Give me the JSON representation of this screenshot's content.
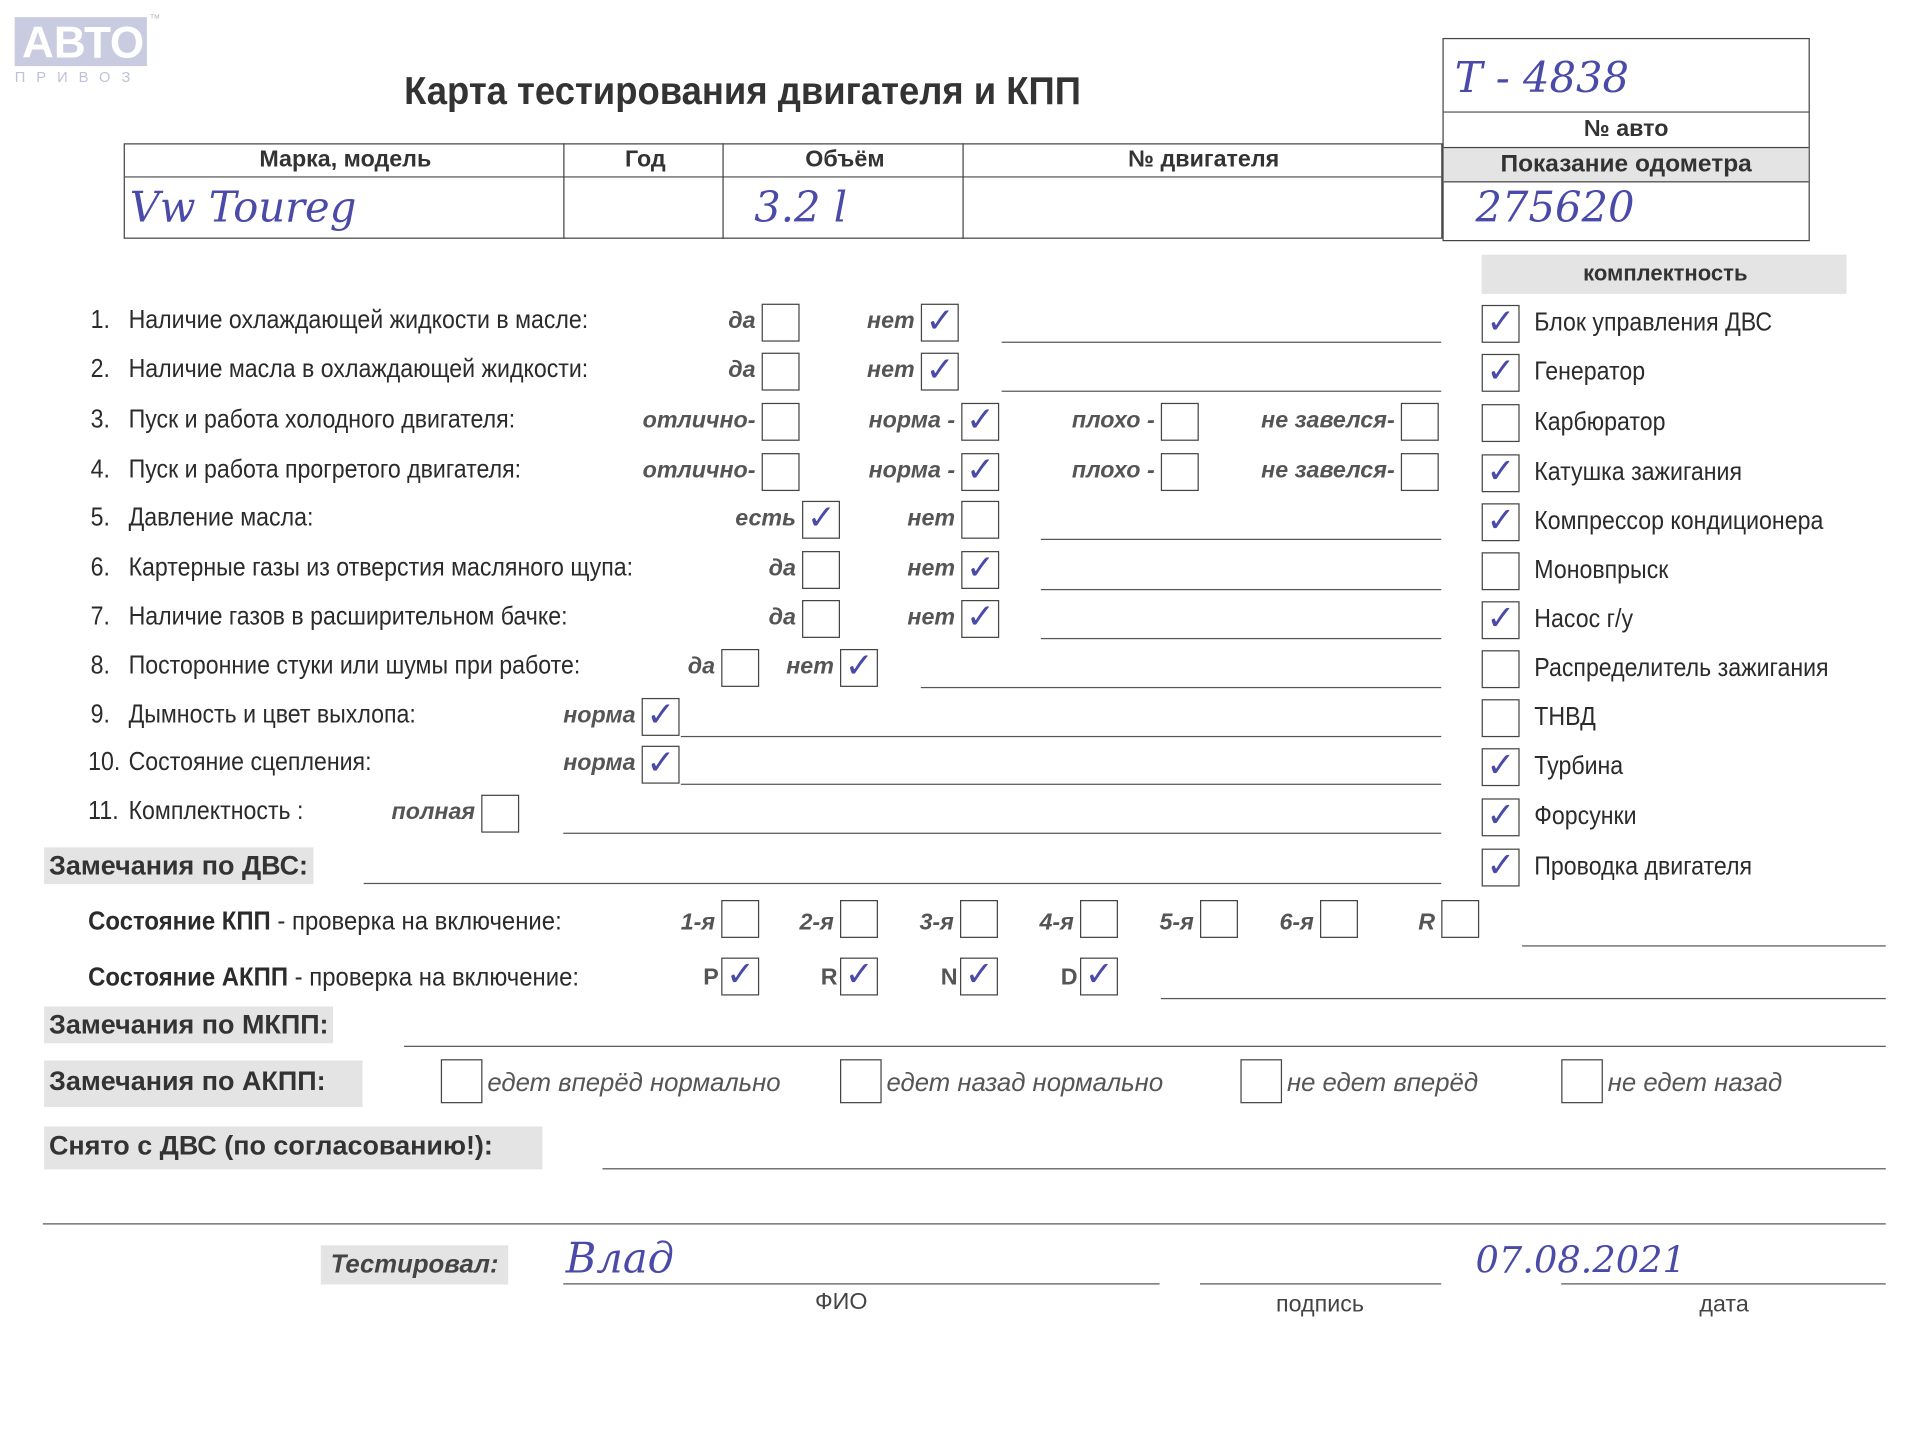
{
  "logo": {
    "text": "АВТО",
    "sub": "ПРИВОЗ",
    "tm": "™"
  },
  "title": "Карта тестирования двигателя  и КПП",
  "header": {
    "columns": [
      "Марка, модель",
      "Год",
      "Объём",
      "№ двигателя"
    ],
    "values": [
      "Vw Toureg",
      "",
      "3.2 l",
      ""
    ],
    "car_number_value": "T - 4838",
    "car_number_label": "№ авто",
    "odometer_label": "Показание одометра",
    "odometer_value": "275620"
  },
  "completeness": {
    "title": "комплектность",
    "items": [
      {
        "label": "Блок управления ДВС",
        "checked": true
      },
      {
        "label": "Генератор",
        "checked": true
      },
      {
        "label": "Карбюратор",
        "checked": false
      },
      {
        "label": "Катушка зажигания",
        "checked": true
      },
      {
        "label": "Компрессор кондиционера",
        "checked": true
      },
      {
        "label": "Моновпрыск",
        "checked": false
      },
      {
        "label": "Насос г/у",
        "checked": true
      },
      {
        "label": "Распределитель зажигания",
        "checked": false
      },
      {
        "label": "ТНВД",
        "checked": false
      },
      {
        "label": "Турбина",
        "checked": true
      },
      {
        "label": "Форсунки",
        "checked": true
      },
      {
        "label": "Проводка двигателя",
        "checked": true
      }
    ]
  },
  "checks": [
    {
      "num": "1.",
      "label": "Наличие охлаждающей жидкости в масле:",
      "options": [
        {
          "label": "да",
          "checked": false
        },
        {
          "label": "нет",
          "checked": true
        }
      ]
    },
    {
      "num": "2.",
      "label": "Наличие масла в охлаждающей жидкости:",
      "options": [
        {
          "label": "да",
          "checked": false
        },
        {
          "label": "нет",
          "checked": true
        }
      ]
    },
    {
      "num": "3.",
      "label": "Пуск и работа холодного двигателя:",
      "options": [
        {
          "label": "отлично-",
          "checked": false
        },
        {
          "label": "норма -",
          "checked": true
        },
        {
          "label": "плохо -",
          "checked": false
        },
        {
          "label": "не завелся-",
          "checked": false
        }
      ]
    },
    {
      "num": "4.",
      "label": "Пуск и работа прогретого двигателя:",
      "options": [
        {
          "label": "отлично-",
          "checked": false
        },
        {
          "label": "норма -",
          "checked": true
        },
        {
          "label": "плохо -",
          "checked": false
        },
        {
          "label": "не завелся-",
          "checked": false
        }
      ]
    },
    {
      "num": "5.",
      "label": "Давление масла:",
      "options": [
        {
          "label": "есть",
          "checked": true
        },
        {
          "label": "нет",
          "checked": false
        }
      ]
    },
    {
      "num": "6.",
      "label": "Картерные газы из отверстия масляного щупа:",
      "options": [
        {
          "label": "да",
          "checked": false
        },
        {
          "label": "нет",
          "checked": true
        }
      ]
    },
    {
      "num": "7.",
      "label": "Наличие газов в расширительном бачке:",
      "options": [
        {
          "label": "да",
          "checked": false
        },
        {
          "label": "нет",
          "checked": true
        }
      ]
    },
    {
      "num": "8.",
      "label": "Посторонние стуки или шумы при работе:",
      "options": [
        {
          "label": "да",
          "checked": false
        },
        {
          "label": "нет",
          "checked": true
        }
      ]
    },
    {
      "num": "9.",
      "label": "Дымность и цвет выхлопа:",
      "options": [
        {
          "label": "норма",
          "checked": true
        }
      ]
    },
    {
      "num": "10.",
      "label": "Состояние сцепления:",
      "options": [
        {
          "label": "норма",
          "checked": true
        }
      ]
    },
    {
      "num": "11.",
      "label": "Комплектность :",
      "options": [
        {
          "label": "полная",
          "checked": false
        }
      ]
    }
  ],
  "engine_remarks_label": "Замечания по ДВС:",
  "manual": {
    "label_bold": "Состояние КПП",
    "label_rest": " - проверка на включение:",
    "gears": [
      {
        "label": "1-я",
        "checked": false
      },
      {
        "label": "2-я",
        "checked": false
      },
      {
        "label": "3-я",
        "checked": false
      },
      {
        "label": "4-я",
        "checked": false
      },
      {
        "label": "5-я",
        "checked": false
      },
      {
        "label": "6-я",
        "checked": false
      },
      {
        "label": "R",
        "checked": false
      }
    ]
  },
  "auto": {
    "label_bold": "Состояние АКПП",
    "label_rest": " - проверка на включение:",
    "gears": [
      {
        "label": "P",
        "checked": true
      },
      {
        "label": "R",
        "checked": true
      },
      {
        "label": "N",
        "checked": true
      },
      {
        "label": "D",
        "checked": true
      }
    ]
  },
  "manual_remarks_label": "Замечания по МКПП:",
  "auto_remarks": {
    "label": "Замечания по АКПП:",
    "options": [
      {
        "label": "едет вперёд нормально",
        "checked": false
      },
      {
        "label": "едет назад нормально",
        "checked": false
      },
      {
        "label": "не едет вперёд",
        "checked": false
      },
      {
        "label": "не едет назад",
        "checked": false
      }
    ]
  },
  "removed_label": "Снято с ДВС (по согласованию!):",
  "footer": {
    "tested_label": "Тестировал:",
    "name_value": "Влад",
    "name_caption": "ФИО",
    "signature_caption": "подпись",
    "date_value": "07.08.2021",
    "date_caption": "дата"
  },
  "colors": {
    "ink": "#4a4aa8",
    "print": "#2b2b2b",
    "shade": "#e4e4e4"
  }
}
